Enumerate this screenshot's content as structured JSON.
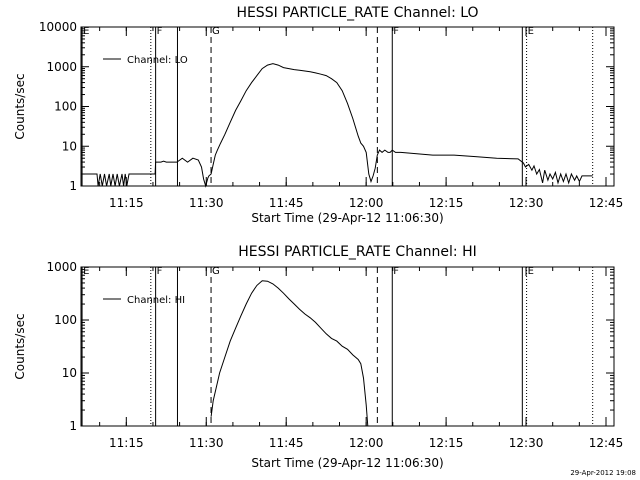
{
  "footer_timestamp": "29-Apr-2012 19:08",
  "chart_data": [
    {
      "type": "line",
      "title": "HESSI PARTICLE_RATE Channel: LO",
      "xlabel": "Start Time (29-Apr-12 11:06:30)",
      "ylabel": "Counts/sec",
      "x_unit": "minutes after 11:06:30",
      "xlim": [
        0,
        100
      ],
      "ylim": [
        1,
        10000
      ],
      "y_scale": "log",
      "x_ticks": [
        {
          "t": 8.5,
          "label": "11:15"
        },
        {
          "t": 23.5,
          "label": "11:30"
        },
        {
          "t": 38.5,
          "label": "11:45"
        },
        {
          "t": 53.5,
          "label": "12:00"
        },
        {
          "t": 68.5,
          "label": "12:15"
        },
        {
          "t": 83.5,
          "label": "12:30"
        },
        {
          "t": 98.5,
          "label": "12:45"
        }
      ],
      "y_ticks": [
        {
          "v": 1,
          "label": "1"
        },
        {
          "v": 10,
          "label": "10"
        },
        {
          "v": 100,
          "label": "100"
        },
        {
          "v": 1000,
          "label": "1000"
        },
        {
          "v": 10000,
          "label": "10000"
        }
      ],
      "legend": {
        "label": "Channel: LO",
        "position": "top-left"
      },
      "markers": [
        {
          "t": 0.2,
          "label": "E",
          "style": "solid"
        },
        {
          "t": 13.1,
          "label": "",
          "style": "dotted"
        },
        {
          "t": 14.0,
          "label": "F",
          "style": "solid"
        },
        {
          "t": 18.1,
          "label": "",
          "style": "solid"
        },
        {
          "t": 24.4,
          "label": "G",
          "style": "dashed"
        },
        {
          "t": 55.6,
          "label": "",
          "style": "dashed"
        },
        {
          "t": 58.4,
          "label": "F",
          "style": "solid"
        },
        {
          "t": 82.8,
          "label": "",
          "style": "solid"
        },
        {
          "t": 83.6,
          "label": "E",
          "style": "dotted"
        },
        {
          "t": 96.0,
          "label": "",
          "style": "dotted"
        }
      ],
      "series": [
        {
          "name": "Channel: LO",
          "x": [
            0,
            0.5,
            3,
            3.2,
            3.6,
            4,
            4.4,
            4.8,
            5.3,
            5.6,
            6,
            6.4,
            6.8,
            7.2,
            7.7,
            8,
            8.3,
            8.6,
            9,
            9.2,
            11.5,
            12,
            13.9,
            14,
            15,
            15.5,
            16,
            17,
            18,
            19,
            20,
            21,
            22,
            22.6,
            23,
            23.4,
            23.8,
            24,
            24.4,
            24.8,
            25.2,
            25.6,
            26.2,
            27,
            28,
            29,
            30,
            31,
            32,
            33,
            34,
            35,
            36,
            37,
            38,
            39,
            40,
            41,
            42,
            43,
            44,
            45,
            46,
            47,
            48,
            49,
            50,
            51,
            52,
            52.5,
            53,
            53.5,
            54,
            54.4,
            54.8,
            55.2,
            55.6,
            56,
            56.5,
            57,
            57.6,
            58,
            58.4,
            59,
            60,
            63,
            66,
            70,
            74,
            78,
            82,
            83,
            83.4,
            84,
            84.6,
            85,
            85.5,
            86,
            86.6,
            87,
            87.6,
            88,
            88.5,
            89,
            89.5,
            90,
            90.5,
            91,
            91.5,
            92,
            92.6,
            93,
            93.5,
            94,
            95.7,
            96
          ],
          "values": [
            2,
            2,
            2,
            1,
            2,
            1,
            2,
            1,
            2,
            1,
            2,
            1,
            2,
            1,
            2,
            1,
            2,
            1,
            2,
            2,
            2,
            2,
            2,
            4,
            4,
            4.2,
            4,
            4,
            4,
            5,
            4,
            5,
            4.5,
            3,
            1.5,
            1,
            1.6,
            1.8,
            2,
            3.5,
            6,
            8,
            12,
            20,
            40,
            80,
            140,
            250,
            400,
            600,
            900,
            1100,
            1200,
            1100,
            950,
            900,
            850,
            820,
            780,
            750,
            700,
            650,
            600,
            500,
            400,
            250,
            120,
            50,
            18,
            12,
            10,
            7,
            2,
            1.3,
            1.8,
            2.8,
            6,
            8,
            7,
            8,
            7,
            7,
            8,
            7,
            7,
            6.5,
            6,
            6,
            5.5,
            5,
            4.8,
            3.8,
            3,
            3.5,
            2.5,
            3.2,
            2,
            2.6,
            1.2,
            2.5,
            1.4,
            2,
            1.5,
            2.2,
            1.2,
            2,
            1.3,
            2,
            1.2,
            2,
            1.4,
            1.8,
            1.3,
            1.8,
            1.8,
            1.8
          ]
        }
      ]
    },
    {
      "type": "line",
      "title": "HESSI PARTICLE_RATE Channel: HI",
      "xlabel": "Start Time (29-Apr-12 11:06:30)",
      "ylabel": "Counts/sec",
      "x_unit": "minutes after 11:06:30",
      "xlim": [
        0,
        100
      ],
      "ylim": [
        1,
        1000
      ],
      "y_scale": "log",
      "x_ticks": [
        {
          "t": 8.5,
          "label": "11:15"
        },
        {
          "t": 23.5,
          "label": "11:30"
        },
        {
          "t": 38.5,
          "label": "11:45"
        },
        {
          "t": 53.5,
          "label": "12:00"
        },
        {
          "t": 68.5,
          "label": "12:15"
        },
        {
          "t": 83.5,
          "label": "12:30"
        },
        {
          "t": 98.5,
          "label": "12:45"
        }
      ],
      "y_ticks": [
        {
          "v": 1,
          "label": "1"
        },
        {
          "v": 10,
          "label": "10"
        },
        {
          "v": 100,
          "label": "100"
        },
        {
          "v": 1000,
          "label": "1000"
        }
      ],
      "legend": {
        "label": "Channel: HI",
        "position": "top-left"
      },
      "markers": [
        {
          "t": 0.2,
          "label": "E",
          "style": "solid"
        },
        {
          "t": 13.1,
          "label": "",
          "style": "dotted"
        },
        {
          "t": 14.0,
          "label": "F",
          "style": "solid"
        },
        {
          "t": 18.1,
          "label": "",
          "style": "solid"
        },
        {
          "t": 24.4,
          "label": "G",
          "style": "dashed"
        },
        {
          "t": 55.6,
          "label": "",
          "style": "dashed"
        },
        {
          "t": 58.4,
          "label": "F",
          "style": "solid"
        },
        {
          "t": 82.8,
          "label": "",
          "style": "solid"
        },
        {
          "t": 83.6,
          "label": "E",
          "style": "dotted"
        },
        {
          "t": 96.0,
          "label": "",
          "style": "dotted"
        }
      ],
      "series": [
        {
          "name": "Channel: HI",
          "x": [
            24.4,
            24.8,
            25.5,
            26,
            27,
            28,
            29,
            30,
            31,
            32,
            33,
            34,
            35,
            36,
            37,
            38,
            39,
            40,
            41,
            42,
            43,
            44,
            45,
            46,
            47,
            48,
            49,
            50,
            51,
            52,
            52.5,
            53,
            53.5,
            53.8
          ],
          "values": [
            1.5,
            3,
            6,
            10,
            20,
            40,
            70,
            120,
            200,
            320,
            450,
            550,
            540,
            480,
            400,
            320,
            250,
            200,
            160,
            130,
            110,
            90,
            70,
            55,
            45,
            40,
            32,
            28,
            22,
            18,
            15,
            8,
            2.5,
            1
          ]
        }
      ]
    }
  ]
}
